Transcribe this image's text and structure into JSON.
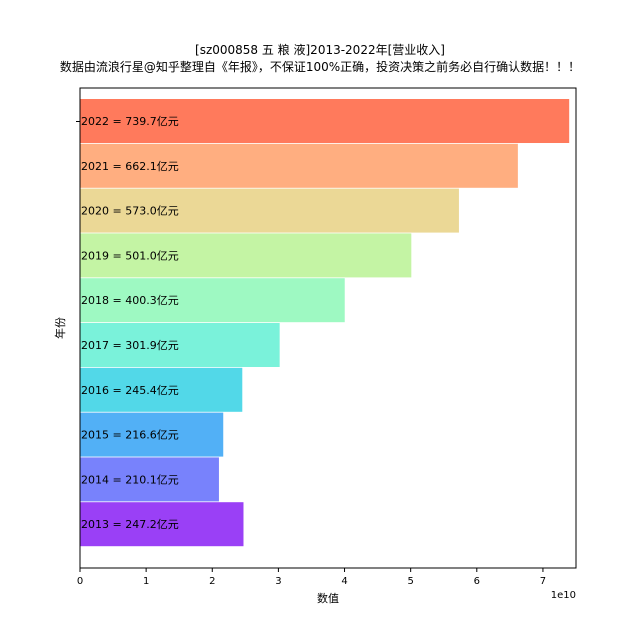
{
  "chart_data": {
    "type": "bar",
    "orientation": "horizontal",
    "title": "[sz000858 五 粮 液]2013-2022年[营业收入]",
    "subtitle": "数据由流浪行星@知乎整理自《年报》，不保证100%正确，投资决策之前务必自行确认数据！！！",
    "xlabel": "数值",
    "ylabel": "年份",
    "x_offset_label": "1e10",
    "xlim": [
      0,
      7.5
    ],
    "x_ticks": [
      0,
      1,
      2,
      3,
      4,
      5,
      6,
      7
    ],
    "x_scale": 10000000000,
    "grid": false,
    "categories": [
      "2022",
      "2021",
      "2020",
      "2019",
      "2018",
      "2017",
      "2016",
      "2015",
      "2014",
      "2013"
    ],
    "values": [
      7.397,
      6.621,
      5.73,
      5.01,
      4.003,
      3.019,
      2.454,
      2.166,
      2.101,
      2.472
    ],
    "labels": [
      "2022 = 739.7亿元",
      "2021 = 662.1亿元",
      "2020 = 573.0亿元",
      "2019 = 501.0亿元",
      "2018 = 400.3亿元",
      "2017 = 301.9亿元",
      "2016 = 245.4亿元",
      "2015 = 216.6亿元",
      "2014 = 210.1亿元",
      "2013 = 247.2亿元"
    ],
    "colors": [
      "#ff7a5c",
      "#ffae80",
      "#ebd896",
      "#c4f4a4",
      "#9ef9c2",
      "#7af2da",
      "#52d8e8",
      "#52b0f6",
      "#7882fc",
      "#9a40f6"
    ]
  }
}
